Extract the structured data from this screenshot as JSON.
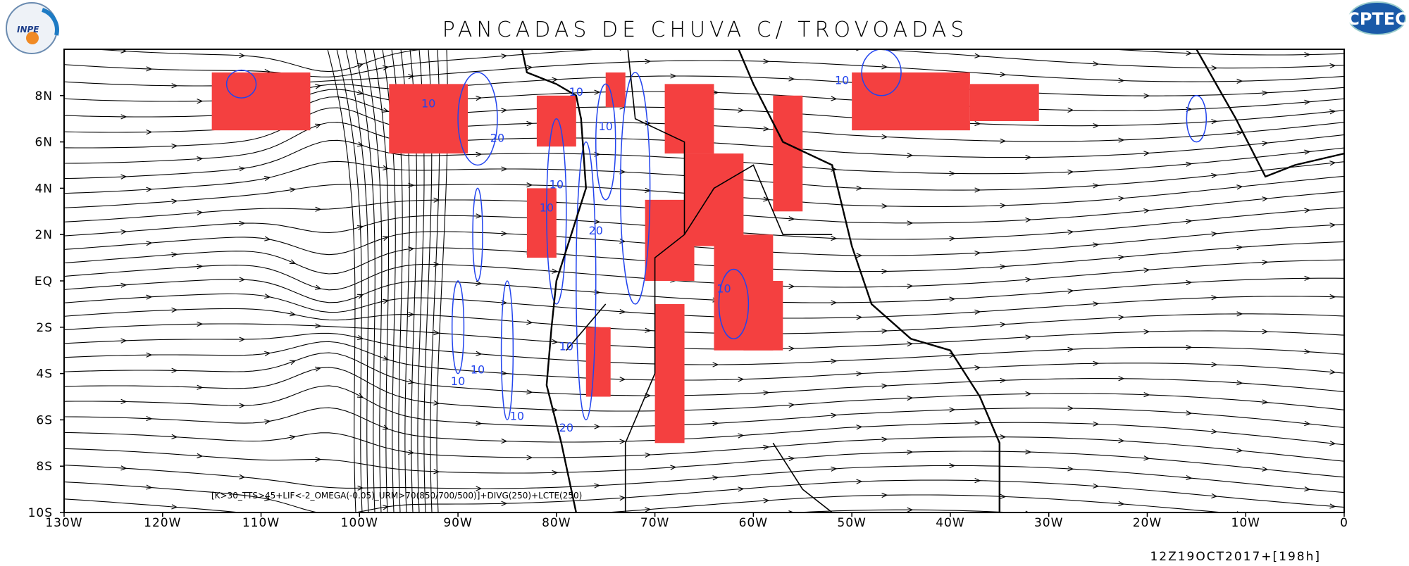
{
  "header": {
    "title": "PANCADAS DE CHUVA C/ TROVOADAS",
    "logo_left": "INPE",
    "logo_right": "CPTEC"
  },
  "map": {
    "xlim": [
      -130,
      0
    ],
    "ylim": [
      -10,
      10
    ],
    "xticks": [
      {
        "value": -130,
        "label": "130W"
      },
      {
        "value": -120,
        "label": "120W"
      },
      {
        "value": -110,
        "label": "110W"
      },
      {
        "value": -100,
        "label": "100W"
      },
      {
        "value": -90,
        "label": "90W"
      },
      {
        "value": -80,
        "label": "80W"
      },
      {
        "value": -70,
        "label": "70W"
      },
      {
        "value": -60,
        "label": "60W"
      },
      {
        "value": -50,
        "label": "50W"
      },
      {
        "value": -40,
        "label": "40W"
      },
      {
        "value": -30,
        "label": "30W"
      },
      {
        "value": -20,
        "label": "20W"
      },
      {
        "value": -10,
        "label": "10W"
      },
      {
        "value": 0,
        "label": "0"
      }
    ],
    "yticks": [
      {
        "value": 8,
        "label": "8N"
      },
      {
        "value": 6,
        "label": "6N"
      },
      {
        "value": 4,
        "label": "4N"
      },
      {
        "value": 2,
        "label": "2N"
      },
      {
        "value": 0,
        "label": "EQ"
      },
      {
        "value": -2,
        "label": "2S"
      },
      {
        "value": -4,
        "label": "4S"
      },
      {
        "value": -6,
        "label": "6S"
      },
      {
        "value": -8,
        "label": "8S"
      },
      {
        "value": -10,
        "label": "10S"
      }
    ],
    "contour_labels": [
      "10",
      "20",
      "10",
      "10",
      "10",
      "20",
      "10",
      "10",
      "10",
      "10",
      "10",
      "10",
      "20",
      "10"
    ],
    "formula": "[K>30_TTS>45+LIF<-2_OMEGA(-0.05)_URM>70(850/700/500)]+DIVG(250)+LCTE(250)"
  },
  "footer": {
    "timestamp": "12Z19OCT2017+[198h]"
  }
}
